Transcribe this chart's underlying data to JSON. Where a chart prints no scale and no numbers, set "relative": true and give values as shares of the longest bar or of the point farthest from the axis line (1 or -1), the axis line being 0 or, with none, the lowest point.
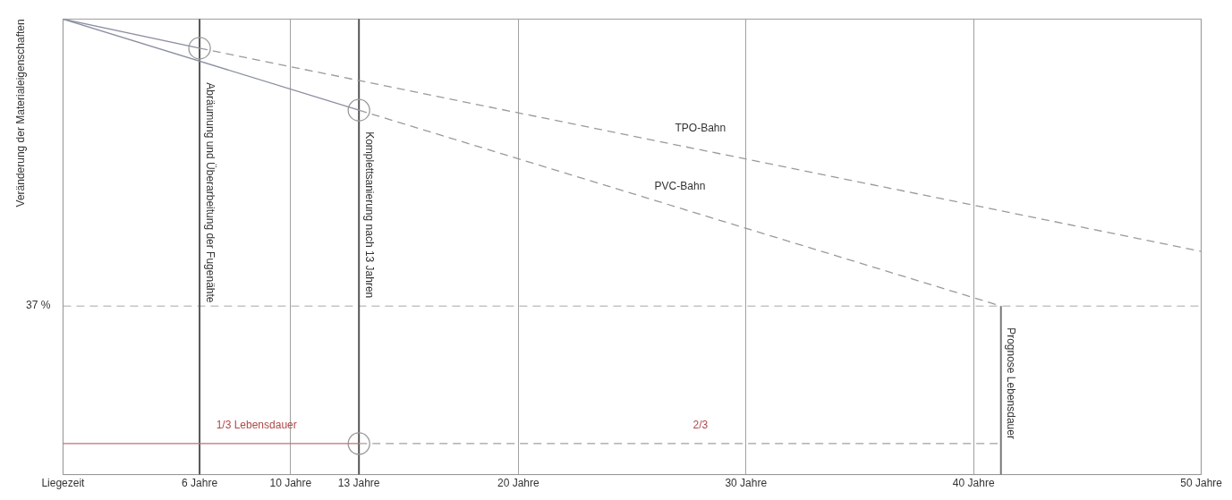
{
  "chart_data": {
    "type": "line",
    "relative": true,
    "ylabel": "Veränderung der Materialeigenschaften",
    "xlim": [
      0,
      50
    ],
    "xticks": [
      {
        "value": 0,
        "label": "Liegezeit"
      },
      {
        "value": 6,
        "label": "6 Jahre"
      },
      {
        "value": 10,
        "label": "10 Jahre"
      },
      {
        "value": 13,
        "label": "13 Jahre"
      },
      {
        "value": 20,
        "label": "20 Jahre"
      },
      {
        "value": 30,
        "label": "30 Jahre"
      },
      {
        "value": 40,
        "label": "40 Jahre"
      },
      {
        "value": 50,
        "label": "50 Jahre"
      }
    ],
    "grid": "x",
    "legend": false,
    "series": [
      {
        "x": [
          0,
          6
        ],
        "values": [
          1,
          0.936
        ],
        "color": "#8a8fa0",
        "line_style": "solid",
        "marker": "none"
      },
      {
        "name": "TPO-Bahn",
        "x": [
          6,
          50
        ],
        "values": [
          0.936,
          0.49
        ],
        "color": "#9a9a9a",
        "line_style": "dashed",
        "marker": "none"
      },
      {
        "x": [
          0,
          13
        ],
        "values": [
          1,
          0.8
        ],
        "color": "#8a8fa0",
        "line_style": "solid",
        "marker": "none"
      },
      {
        "name": "PVC-Bahn",
        "x": [
          13,
          41.2
        ],
        "values": [
          0.8,
          0.37
        ],
        "color": "#9a9a9a",
        "line_style": "dashed",
        "marker": "none"
      },
      {
        "x": [
          0,
          13
        ],
        "values": [
          0.068,
          0.068
        ],
        "color": "#c07070",
        "line_style": "solid",
        "marker": "none"
      },
      {
        "x": [
          13,
          41.2
        ],
        "values": [
          0.068,
          0.068
        ],
        "color": "#a0a0a0",
        "line_style": "dashed",
        "marker": "none"
      },
      {
        "type": "scatter",
        "x": [
          6,
          13,
          13
        ],
        "values": [
          0.936,
          0.8,
          0.068
        ],
        "color": "#9a9a9a",
        "marker": "circle"
      }
    ],
    "ref_lines": [
      {
        "axis": "y",
        "value": 0.37,
        "label": "37 %",
        "color": "#a8a8a8",
        "line_style": "dashed"
      },
      {
        "axis": "x",
        "value": 6,
        "label": "Abräumung und Überarbeitung der Fugenähte",
        "color": "#555555",
        "line_style": "solid"
      },
      {
        "axis": "x",
        "value": 13,
        "label": "Komplettsanierung nach 13 Jahren",
        "color": "#555555",
        "line_style": "solid"
      },
      {
        "axis": "x",
        "value": 41.2,
        "label": "Prognose Lebensdauer",
        "color": "#777777",
        "line_style": "solid"
      }
    ],
    "annotations": [
      {
        "text": "1/3 Lebensdauer",
        "x": 8.5,
        "y": 0.068
      },
      {
        "text": "2/3",
        "x": 28,
        "y": 0.068
      }
    ]
  }
}
